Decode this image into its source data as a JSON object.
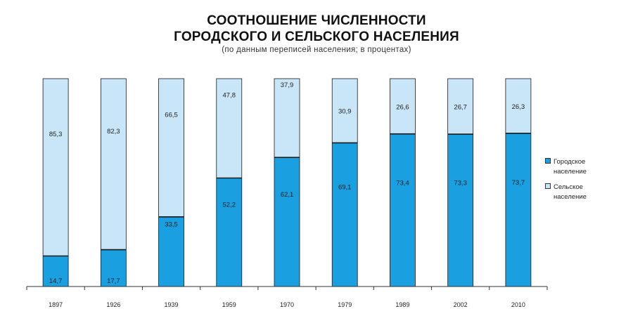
{
  "titles": {
    "line1": "СООТНОШЕНИЕ ЧИСЛЕННОСТИ",
    "line2": "ГОРОДСКОГО И СЕЛЬСКОГО НАСЕЛЕНИЯ",
    "subtitle": "(по данным переписей населения; в процентах)"
  },
  "legend": {
    "urban_label": "Городское население",
    "rural_label": "Сельское население"
  },
  "colors": {
    "urban": "#1a9fe0",
    "rural": "#c8e6f7",
    "outline": "#1a1a1a"
  },
  "chart_data": {
    "type": "bar",
    "stacked": true,
    "categories": [
      "1897",
      "1926",
      "1939",
      "1959",
      "1970",
      "1979",
      "1989",
      "2002",
      "2010"
    ],
    "series": [
      {
        "name": "Городское население",
        "values": [
          14.7,
          17.7,
          33.5,
          52.2,
          62.1,
          69.1,
          73.4,
          73.3,
          73.7
        ]
      },
      {
        "name": "Сельское население",
        "values": [
          85.3,
          82.3,
          66.5,
          47.8,
          37.9,
          30.9,
          26.6,
          26.7,
          26.3
        ]
      }
    ],
    "labels": {
      "urban": [
        "14,7",
        "17,7",
        "33,5",
        "52,2",
        "62,1",
        "69,1",
        "73,4",
        "73,3",
        "73,7"
      ],
      "rural": [
        "85,3",
        "82,3",
        "66,5",
        "47,8",
        "37,9",
        "30,9",
        "26,6",
        "26,7",
        "26,3"
      ]
    },
    "ylim": [
      0,
      100
    ],
    "legend_position": "right",
    "grid": false
  }
}
